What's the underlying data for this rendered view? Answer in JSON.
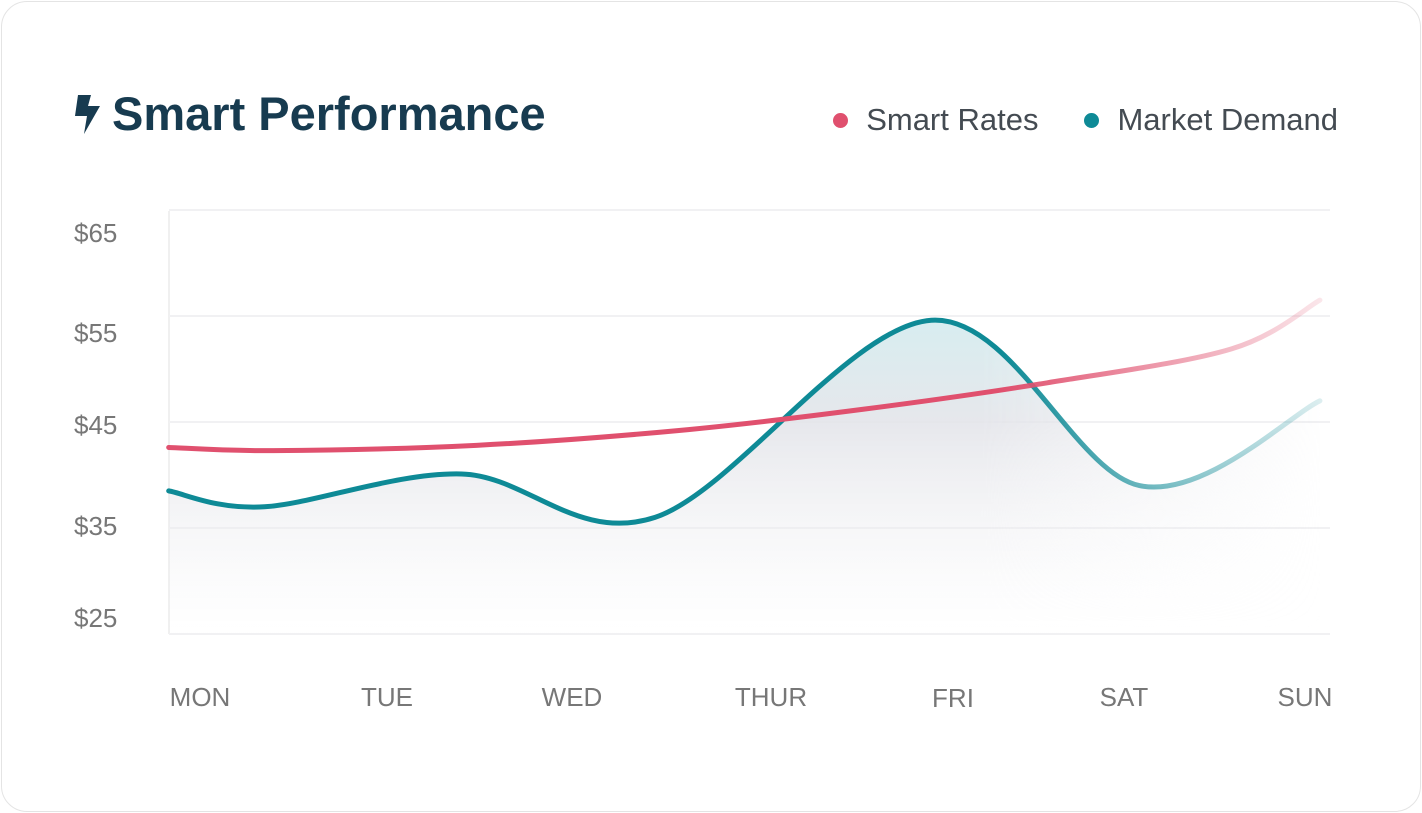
{
  "header": {
    "title": "Smart Performance",
    "icon": "lightning-bolt-icon"
  },
  "colors": {
    "smart_rates": "#e0506e",
    "market_demand": "#0e8a96",
    "title": "#173b50"
  },
  "chart_data": {
    "type": "line",
    "title": "Smart Performance",
    "xlabel": "",
    "ylabel": "",
    "categories": [
      "MON",
      "TUE",
      "WED",
      "THUR",
      "FRI",
      "SAT",
      "SUN"
    ],
    "yticks": [
      "$25",
      "$35",
      "$45",
      "$55",
      "$65"
    ],
    "ylim": [
      25,
      65
    ],
    "grid": true,
    "legend": "top-right",
    "series": [
      {
        "name": "Smart Rates",
        "color": "#e0506e",
        "points": [
          [
            -0.17,
            42.6
          ],
          [
            0.4,
            42.3
          ],
          [
            1.5,
            42.8
          ],
          [
            2.6,
            44.2
          ],
          [
            3.6,
            46.2
          ],
          [
            4.6,
            48.7
          ],
          [
            5.6,
            51.9
          ],
          [
            6.08,
            56.5
          ]
        ]
      },
      {
        "name": "Market Demand",
        "color": "#0e8a96",
        "points": [
          [
            -0.17,
            38.5
          ],
          [
            0.35,
            37.0
          ],
          [
            1.42,
            40.1
          ],
          [
            2.47,
            36.0
          ],
          [
            3.97,
            54.6
          ],
          [
            5.1,
            39.0
          ],
          [
            6.08,
            47.0
          ]
        ]
      }
    ]
  }
}
